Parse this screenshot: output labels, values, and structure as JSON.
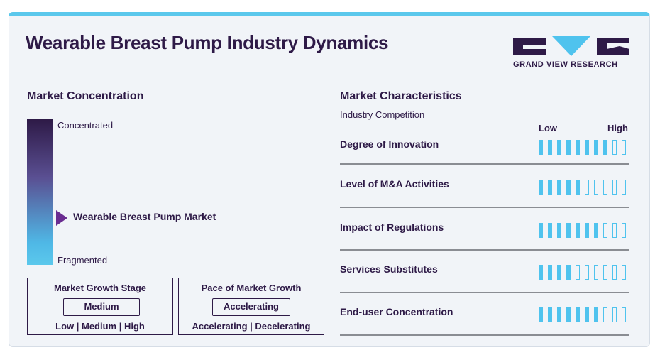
{
  "title": "Wearable Breast Pump Industry Dynamics",
  "logo": {
    "text": "GRAND VIEW RESEARCH"
  },
  "concentration": {
    "heading": "Market Concentration",
    "top_label": "Concentrated",
    "bottom_label": "Fragmented",
    "marker_label": "Wearable Breast Pump Market",
    "marker_level": 0.3
  },
  "growth_stage": {
    "title": "Market Growth Stage",
    "value": "Medium",
    "scale": "Low | Medium | High"
  },
  "growth_pace": {
    "title": "Pace of Market Growth",
    "value": "Accelerating",
    "scale": "Accelerating | Decelerating"
  },
  "characteristics": {
    "heading": "Market Characteristics",
    "subheading": "Industry Competition",
    "low_label": "Low",
    "high_label": "High"
  },
  "colors": {
    "accent": "#4fc3ee",
    "dark": "#2e1a47",
    "marker": "#6a2c91"
  },
  "chart_data": {
    "type": "table",
    "max_level": 10,
    "rows": [
      {
        "label": "Degree of Innovation",
        "level": 8
      },
      {
        "label": "Level of M&A Activities",
        "level": 5
      },
      {
        "label": "Impact of Regulations",
        "level": 7
      },
      {
        "label": "Services Substitutes",
        "level": 4
      },
      {
        "label": "End-user Concentration",
        "level": 7
      }
    ]
  }
}
